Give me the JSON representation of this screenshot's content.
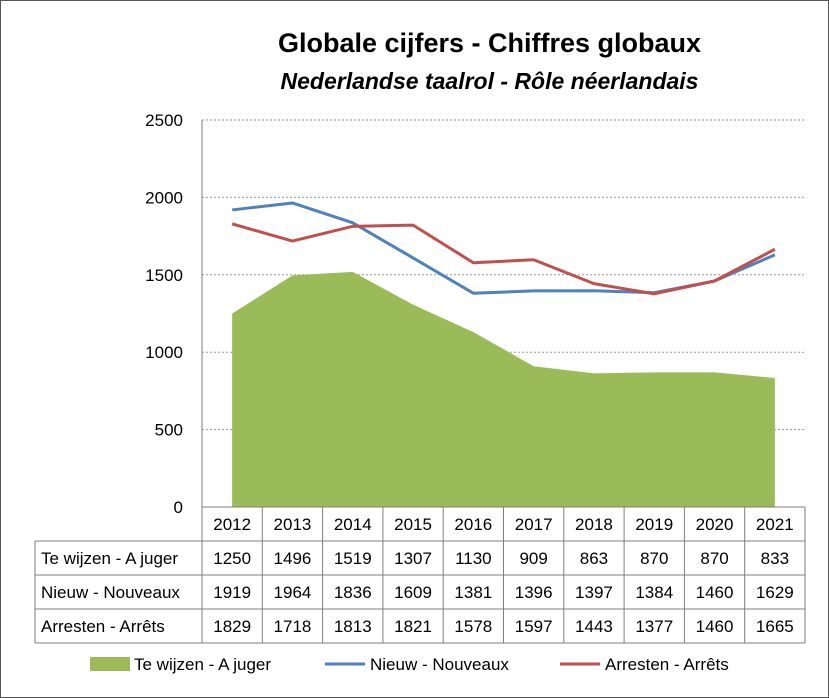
{
  "chart_data": {
    "type": "line",
    "title": "Globale cijfers - Chiffres globaux",
    "subtitle": "Nederlandse taalrol - Rôle néerlandais",
    "categories": [
      "2012",
      "2013",
      "2014",
      "2015",
      "2016",
      "2017",
      "2018",
      "2019",
      "2020",
      "2021"
    ],
    "ylim": [
      0,
      2500
    ],
    "yticks": [
      "0",
      "500",
      "1000",
      "1500",
      "2000",
      "2500"
    ],
    "grid": true,
    "legend_position": "bottom",
    "series": [
      {
        "name": "Te wijzen - A juger",
        "render": "area",
        "color": "#9bbb59",
        "values": [
          1250,
          1496,
          1519,
          1307,
          1130,
          909,
          863,
          870,
          870,
          833
        ]
      },
      {
        "name": "Nieuw - Nouveaux",
        "render": "line",
        "color": "#4f81bd",
        "values": [
          1919,
          1964,
          1836,
          1609,
          1381,
          1396,
          1397,
          1384,
          1460,
          1629
        ]
      },
      {
        "name": "Arresten - Arrêts",
        "render": "line",
        "color": "#c0504d",
        "values": [
          1829,
          1718,
          1813,
          1821,
          1578,
          1597,
          1443,
          1377,
          1460,
          1665
        ]
      }
    ]
  }
}
